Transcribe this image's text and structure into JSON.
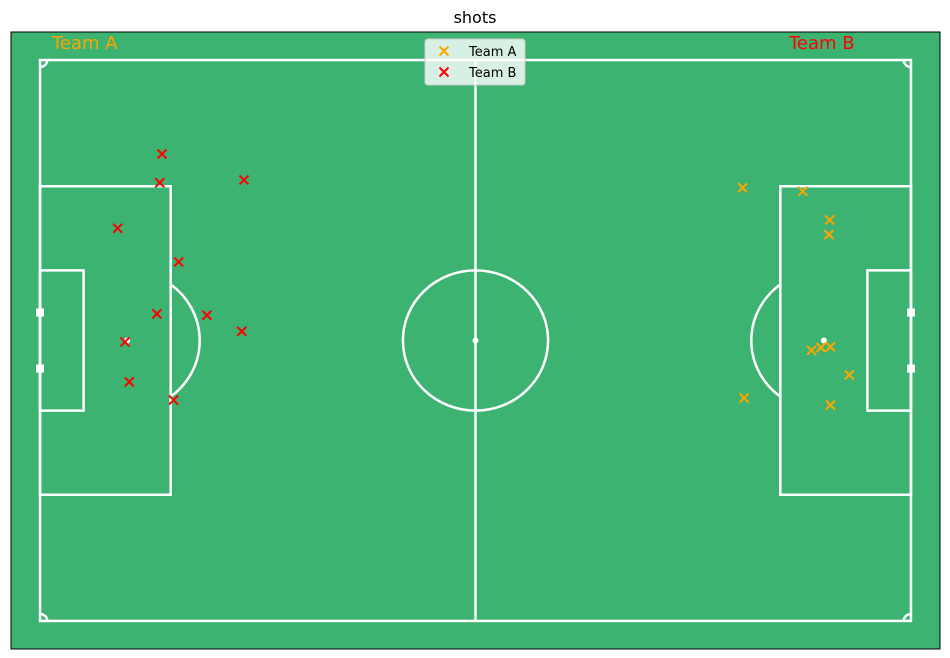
{
  "chart_data": {
    "type": "scatter",
    "title": "shots",
    "xlim": [
      -4,
      124
    ],
    "ylim": [
      -4,
      84
    ],
    "pitch": {
      "length": 120,
      "width": 80
    },
    "legend_position": "top-center",
    "grid": false,
    "colors": {
      "pitch": "#3db372",
      "lines": "#ffffff",
      "team_a": "#ffa500",
      "team_b": "#ff0000"
    },
    "team_labels": [
      {
        "text": "Team A",
        "color": "#ffa500"
      },
      {
        "text": "Team B",
        "color": "#ff0000"
      }
    ],
    "series": [
      {
        "name": "Team A",
        "marker": "x",
        "color": "#ffa500",
        "x": [
          96.8,
          97.0,
          105.1,
          106.3,
          107.6,
          108.7,
          108.8,
          108.9,
          111.5,
          108.9
        ],
        "y": [
          18.2,
          48.2,
          18.7,
          41.4,
          41.0,
          24.9,
          22.8,
          40.9,
          44.9,
          49.2
        ]
      },
      {
        "name": "Team B",
        "marker": "x",
        "color": "#ff0000",
        "x": [
          16.8,
          16.5,
          28.1,
          10.7,
          19.1,
          16.1,
          23.0,
          27.8,
          11.7,
          12.3,
          18.4
        ],
        "y": [
          13.4,
          17.5,
          17.1,
          24.0,
          28.8,
          36.2,
          36.4,
          38.7,
          40.2,
          45.9,
          48.5
        ]
      }
    ]
  }
}
